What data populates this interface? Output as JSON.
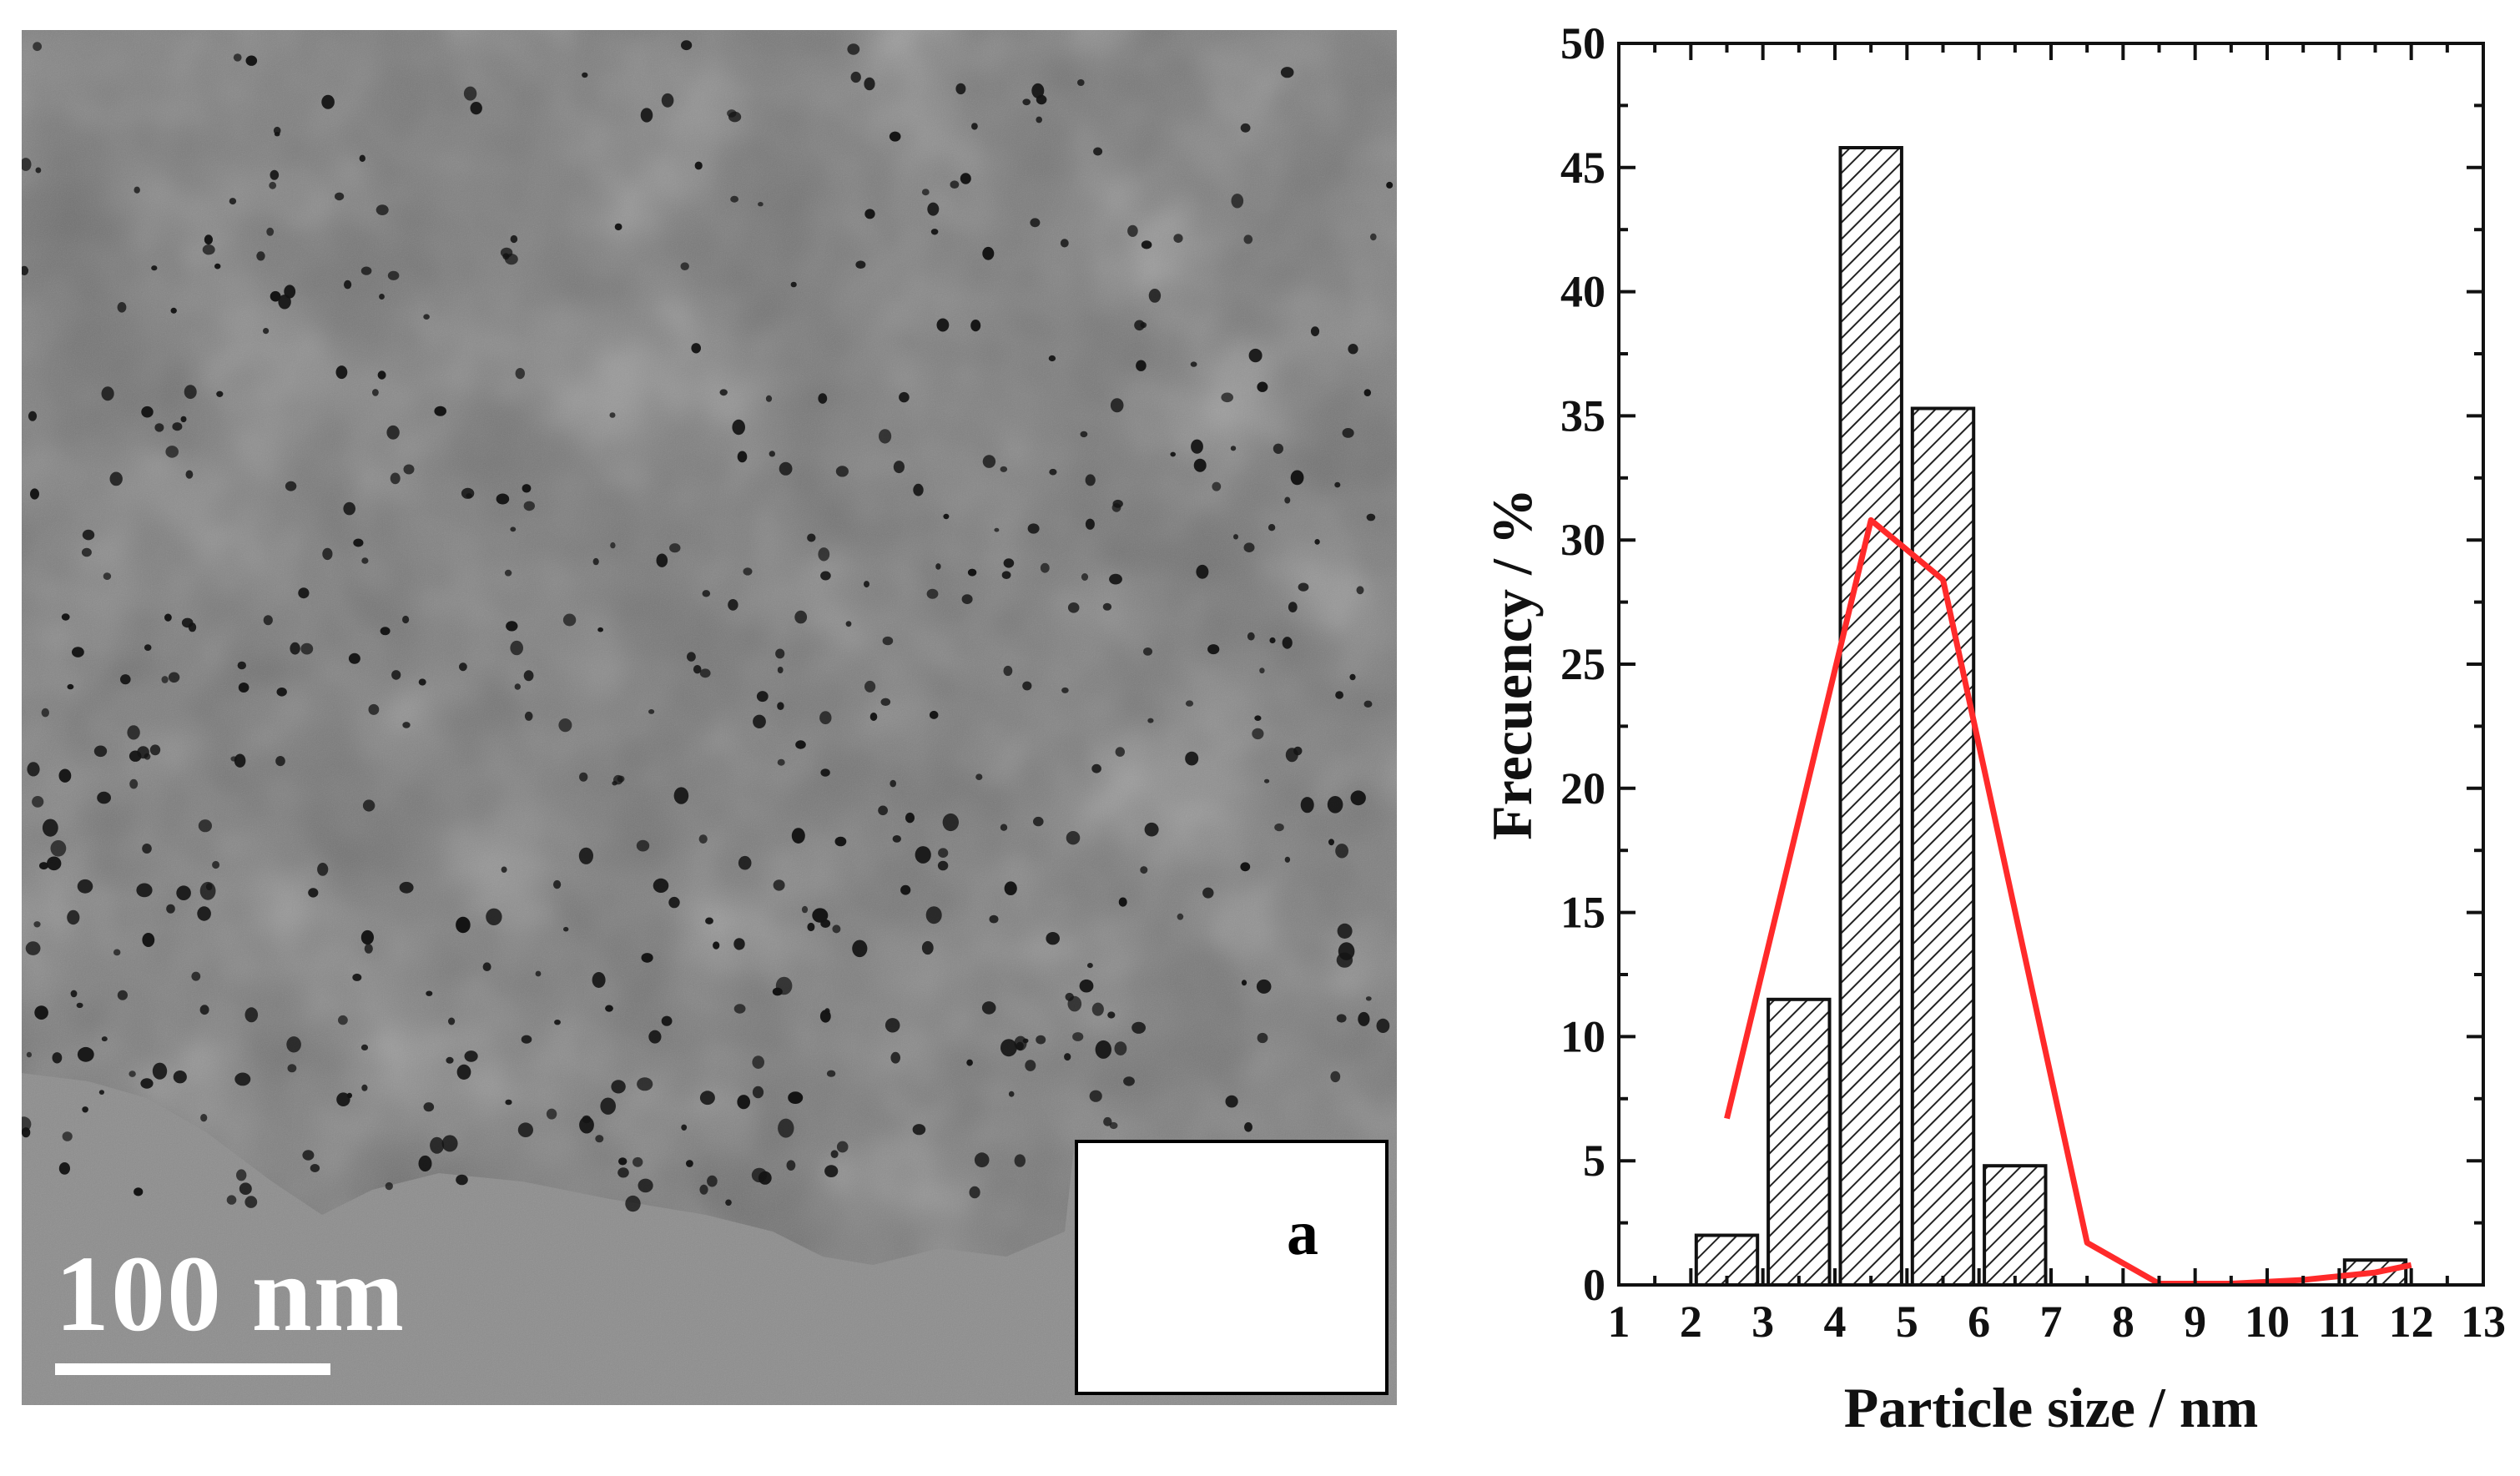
{
  "figure": {
    "micrograph": {
      "scale_bar_label": "100 nm",
      "panel_label": "a"
    }
  },
  "chart_data": {
    "type": "bar",
    "title": "",
    "xlabel": "Particle size / nm",
    "ylabel": "Frecuency / %",
    "xlim": [
      1,
      13
    ],
    "ylim": [
      0,
      50
    ],
    "x_ticks": [
      1,
      2,
      3,
      4,
      5,
      6,
      7,
      8,
      9,
      10,
      11,
      12,
      13
    ],
    "y_ticks": [
      0,
      5,
      10,
      15,
      20,
      25,
      30,
      35,
      40,
      45,
      50
    ],
    "bar_width": 0.85,
    "bars": [
      {
        "x": 2.5,
        "value": 2
      },
      {
        "x": 3.5,
        "value": 11.5
      },
      {
        "x": 4.5,
        "value": 45.8
      },
      {
        "x": 5.5,
        "value": 35.3
      },
      {
        "x": 6.5,
        "value": 4.8
      },
      {
        "x": 11.5,
        "value": 1
      }
    ],
    "fit_line": {
      "color": "#ff2a2a",
      "points": [
        [
          2.5,
          6.7
        ],
        [
          4.5,
          30.8
        ],
        [
          5.5,
          28.4
        ],
        [
          7.5,
          1.7
        ],
        [
          8.5,
          0.05
        ],
        [
          9.5,
          0.05
        ],
        [
          10.5,
          0.2
        ],
        [
          11.5,
          0.5
        ],
        [
          12.0,
          0.8
        ]
      ]
    },
    "grid": false,
    "bar_pattern": "diagonal-hatch"
  }
}
